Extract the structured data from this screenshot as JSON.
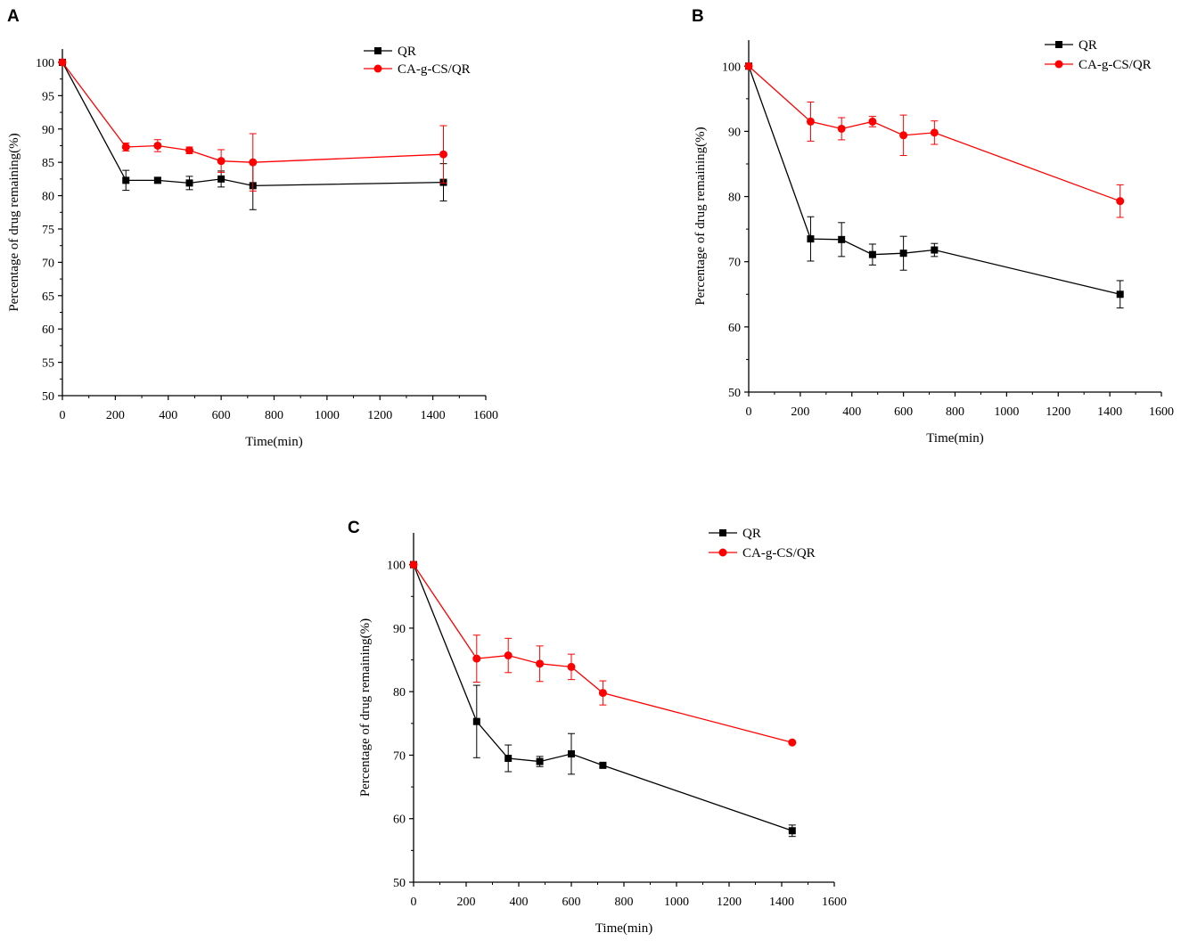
{
  "figure": {
    "colors": {
      "QR": "#000000",
      "CA-g-CS/QR": "#ff0000"
    }
  },
  "chart_data": [
    {
      "panel": "A",
      "type": "line",
      "title": "",
      "xlabel": "Time(min)",
      "ylabel": "Percentage of drug remaining(%)",
      "xlim": [
        0,
        1600
      ],
      "ylim": [
        50,
        102
      ],
      "xticks": [
        0,
        200,
        400,
        600,
        800,
        1000,
        1200,
        1400,
        1600
      ],
      "yticks": [
        50,
        55,
        60,
        65,
        70,
        75,
        80,
        85,
        90,
        95,
        100
      ],
      "legend": "top-right",
      "series": [
        {
          "name": "QR",
          "color": "#000000",
          "marker": "square",
          "x": [
            0,
            240,
            360,
            480,
            600,
            720,
            1440
          ],
          "y": [
            100,
            82.3,
            82.3,
            81.9,
            82.5,
            81.5,
            82.0
          ],
          "err": [
            0,
            1.5,
            0.4,
            1.0,
            1.2,
            3.6,
            2.8
          ]
        },
        {
          "name": "CA-g-CS/QR",
          "color": "#ff0000",
          "marker": "circle",
          "x": [
            0,
            240,
            360,
            480,
            600,
            720,
            1440
          ],
          "y": [
            100,
            87.3,
            87.5,
            86.8,
            85.2,
            85.0,
            86.2
          ],
          "err": [
            0,
            0.6,
            0.9,
            0.5,
            1.7,
            4.3,
            4.3
          ]
        }
      ]
    },
    {
      "panel": "B",
      "type": "line",
      "title": "",
      "xlabel": "Time(min)",
      "ylabel": "Percentage of drug remaining(%)",
      "xlim": [
        0,
        1600
      ],
      "ylim": [
        50,
        104
      ],
      "xticks": [
        0,
        200,
        400,
        600,
        800,
        1000,
        1200,
        1400,
        1600
      ],
      "yticks": [
        50,
        60,
        70,
        80,
        90,
        100
      ],
      "legend": "top-right",
      "series": [
        {
          "name": "QR",
          "color": "#000000",
          "marker": "square",
          "x": [
            0,
            240,
            360,
            480,
            600,
            720,
            1440
          ],
          "y": [
            100,
            73.5,
            73.4,
            71.1,
            71.3,
            71.8,
            65.0
          ],
          "err": [
            0,
            3.4,
            2.6,
            1.6,
            2.6,
            1.0,
            2.1
          ]
        },
        {
          "name": "CA-g-CS/QR",
          "color": "#ff0000",
          "marker": "circle",
          "x": [
            0,
            240,
            360,
            480,
            600,
            720,
            1440
          ],
          "y": [
            100,
            91.5,
            90.4,
            91.5,
            89.4,
            89.8,
            79.3
          ],
          "err": [
            0,
            3.0,
            1.7,
            0.8,
            3.1,
            1.8,
            2.5
          ]
        }
      ]
    },
    {
      "panel": "C",
      "type": "line",
      "title": "",
      "xlabel": "Time(min)",
      "ylabel": "Percentage of drug remaining(%)",
      "xlim": [
        0,
        1600
      ],
      "ylim": [
        50,
        105
      ],
      "xticks": [
        0,
        200,
        400,
        600,
        800,
        1000,
        1200,
        1400,
        1600
      ],
      "yticks": [
        50,
        60,
        70,
        80,
        90,
        100
      ],
      "legend": "top-right",
      "series": [
        {
          "name": "QR",
          "color": "#000000",
          "marker": "square",
          "x": [
            0,
            240,
            360,
            480,
            600,
            720,
            1440
          ],
          "y": [
            100,
            75.3,
            69.5,
            69.0,
            70.2,
            68.4,
            58.1
          ],
          "err": [
            0,
            5.7,
            2.1,
            0.8,
            3.2,
            0.3,
            0.9
          ]
        },
        {
          "name": "CA-g-CS/QR",
          "color": "#ff0000",
          "marker": "circle",
          "x": [
            0,
            240,
            360,
            480,
            600,
            720,
            1440
          ],
          "y": [
            100,
            85.2,
            85.7,
            84.4,
            83.9,
            79.8,
            72.0
          ],
          "err": [
            0,
            3.7,
            2.7,
            2.8,
            2.0,
            1.9,
            0
          ]
        }
      ]
    }
  ]
}
